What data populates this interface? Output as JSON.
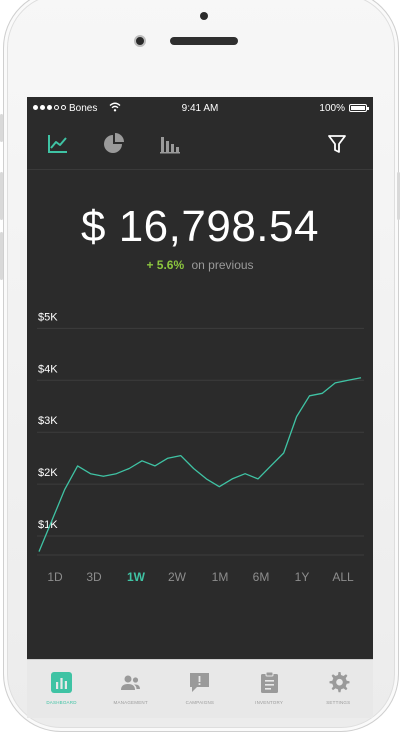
{
  "status_bar": {
    "carrier": "Bones",
    "time": "9:41 AM",
    "battery": "100%"
  },
  "toolbar": {
    "icons": [
      "line-chart-icon",
      "pie-chart-icon",
      "bar-chart-icon",
      "filter-icon"
    ],
    "accent": "#3fc3a4"
  },
  "summary": {
    "amount": "$ 16,798.54",
    "change": "+ 5.6%",
    "change_label": "on previous",
    "change_color": "#8cc63f"
  },
  "chart_data": {
    "type": "line",
    "ylim": [
      500,
      5700
    ],
    "y_ticks": [
      1000,
      2000,
      3000,
      4000,
      5000
    ],
    "y_tick_labels": [
      "$1K",
      "$2K",
      "$3K",
      "$4K",
      "$5K"
    ],
    "grid": true,
    "series": [
      {
        "values": [
          700,
          1300,
          1900,
          2350,
          2200,
          2150,
          2200,
          2300,
          2450,
          2350,
          2500,
          2550,
          2300,
          2100,
          1950,
          2100,
          2200,
          2100,
          2350,
          2600,
          3300,
          3700,
          3750,
          3950,
          4000,
          4050
        ],
        "color": "#3fc3a4"
      }
    ]
  },
  "ranges": {
    "items": [
      "1D",
      "3D",
      "1W",
      "2W",
      "1M",
      "6M",
      "1Y",
      "ALL"
    ],
    "active": "1W"
  },
  "tabbar": {
    "items": [
      {
        "label": "DASHBOARD",
        "icon": "dashboard-icon"
      },
      {
        "label": "MANAGEMENT",
        "icon": "users-icon"
      },
      {
        "label": "CAMPAIGNS",
        "icon": "chat-alert-icon"
      },
      {
        "label": "INVENTORY",
        "icon": "clipboard-icon"
      },
      {
        "label": "SETTINGS",
        "icon": "gear-icon"
      }
    ],
    "active": "DASHBOARD"
  }
}
